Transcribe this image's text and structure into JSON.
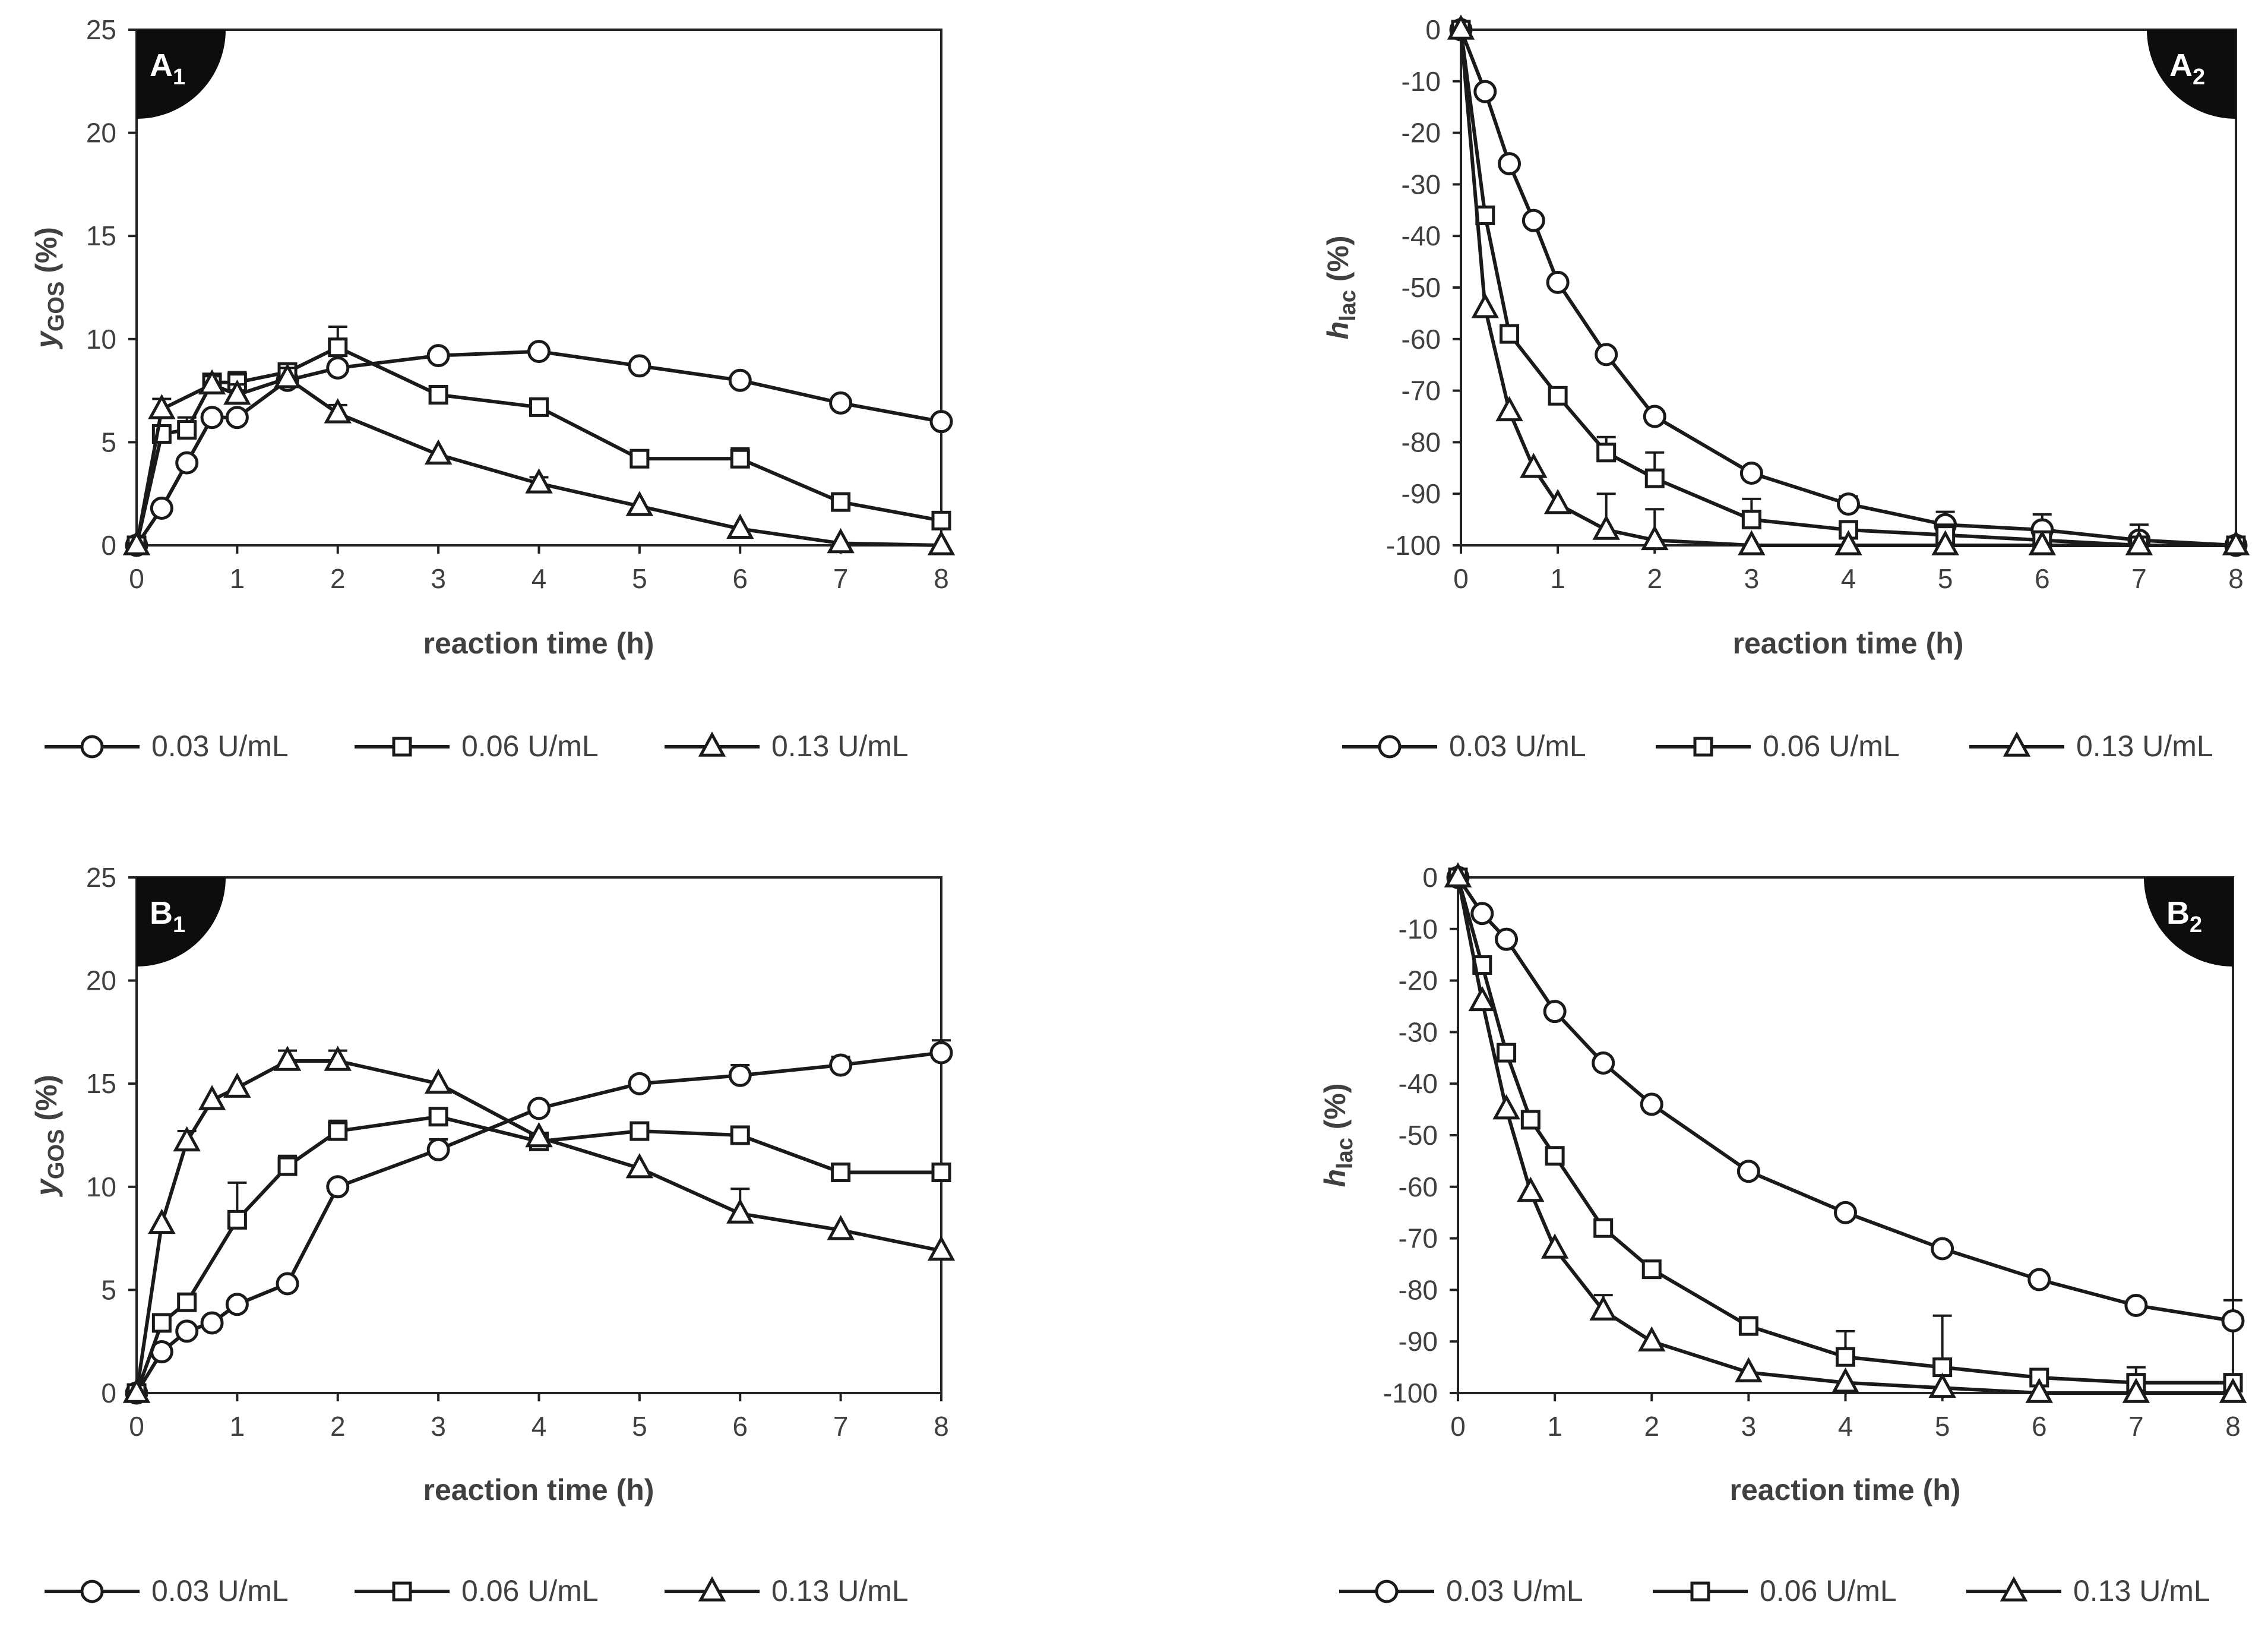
{
  "series_names": [
    "0.03 U/mL",
    "0.06 U/mL",
    "0.13 U/mL"
  ],
  "chart_data": [
    {
      "id": "A1",
      "type": "line",
      "badge": {
        "main": "A",
        "sub": "1"
      },
      "xlabel": "reaction time (h)",
      "ylabel": {
        "main": "y",
        "sub": "GOS",
        "unit": " (%)",
        "style": "italic"
      },
      "xlim": [
        0,
        8
      ],
      "ylim": [
        0,
        25
      ],
      "xticks": [
        0,
        1,
        2,
        3,
        4,
        5,
        6,
        7,
        8
      ],
      "yticks": [
        0,
        5,
        10,
        15,
        20,
        25
      ],
      "legend": "bottom",
      "series": [
        {
          "name": "0.03 U/mL",
          "marker": "circle",
          "x": [
            0,
            0.25,
            0.5,
            0.75,
            1,
            1.5,
            2,
            3,
            4,
            5,
            6,
            7,
            8
          ],
          "y": [
            0,
            1.8,
            4.0,
            6.2,
            6.2,
            8.0,
            8.6,
            9.2,
            9.4,
            8.7,
            8.0,
            6.9,
            6.0
          ],
          "err": [
            0,
            0,
            0,
            0,
            0,
            0,
            0.3,
            0,
            0,
            0,
            0,
            0,
            0
          ]
        },
        {
          "name": "0.06 U/mL",
          "marker": "square",
          "x": [
            0,
            0.25,
            0.5,
            0.75,
            1,
            1.5,
            2,
            3,
            4,
            5,
            6,
            7,
            8
          ],
          "y": [
            0,
            5.4,
            5.6,
            7.9,
            7.9,
            8.4,
            9.6,
            7.3,
            6.7,
            4.2,
            4.2,
            2.1,
            1.2
          ],
          "err": [
            0,
            0.3,
            0.6,
            0,
            0.5,
            0,
            1.0,
            0,
            0.4,
            0,
            0.5,
            0.3,
            0
          ]
        },
        {
          "name": "0.13 U/mL",
          "marker": "triangle",
          "x": [
            0,
            0.25,
            0.75,
            1,
            1.5,
            2,
            3,
            4,
            5,
            6,
            7,
            8
          ],
          "y": [
            0,
            6.6,
            7.8,
            7.3,
            8.1,
            6.4,
            4.4,
            3.0,
            1.9,
            0.8,
            0.1,
            0
          ],
          "err": [
            0,
            0.5,
            0.4,
            0.5,
            0.5,
            0.4,
            0,
            0.3,
            0,
            0,
            0,
            0
          ]
        }
      ]
    },
    {
      "id": "A2",
      "type": "line",
      "badge": {
        "main": "A",
        "sub": "2"
      },
      "xlabel": "reaction time (h)",
      "ylabel": {
        "main": "h",
        "sub": "lac",
        "unit": " (%)",
        "style": "italic"
      },
      "xlim": [
        0,
        8
      ],
      "ylim": [
        -100,
        0
      ],
      "xticks": [
        0,
        1,
        2,
        3,
        4,
        5,
        6,
        7,
        8
      ],
      "yticks": [
        0,
        -10,
        -20,
        -30,
        -40,
        -50,
        -60,
        -70,
        -80,
        -90,
        -100
      ],
      "legend": "bottom",
      "series": [
        {
          "name": "0.03 U/mL",
          "marker": "circle",
          "x": [
            0,
            0.25,
            0.5,
            0.75,
            1,
            1.5,
            2,
            3,
            4,
            5,
            6,
            7,
            8
          ],
          "y": [
            0,
            -12,
            -26,
            -37,
            -49,
            -63,
            -75,
            -86,
            -92,
            -96,
            -97,
            -99,
            -100
          ],
          "err": [
            0,
            0,
            0,
            0,
            0,
            0,
            0,
            0,
            1.5,
            2.5,
            3,
            3,
            0
          ]
        },
        {
          "name": "0.06 U/mL",
          "marker": "square",
          "x": [
            0,
            0.25,
            0.5,
            1,
            1.5,
            2,
            3,
            4,
            5,
            6,
            7,
            8
          ],
          "y": [
            0,
            -36,
            -59,
            -71,
            -82,
            -87,
            -95,
            -97,
            -98,
            -99,
            -100,
            -100
          ],
          "err": [
            0,
            1,
            1,
            0,
            3,
            5,
            4,
            1,
            2,
            0,
            0,
            0
          ]
        },
        {
          "name": "0.13 U/mL",
          "marker": "triangle",
          "x": [
            0,
            0.25,
            0.5,
            0.75,
            1,
            1.5,
            2,
            3,
            4,
            5,
            6,
            7,
            8
          ],
          "y": [
            0,
            -54,
            -74,
            -85,
            -92,
            -97,
            -99,
            -100,
            -100,
            -100,
            -100,
            -100,
            -100
          ],
          "err": [
            0,
            0,
            0,
            0,
            0,
            7,
            6,
            0,
            0,
            0,
            0,
            0,
            0
          ]
        }
      ]
    },
    {
      "id": "B1",
      "type": "line",
      "badge": {
        "main": "B",
        "sub": "1"
      },
      "xlabel": "reaction time (h)",
      "ylabel": {
        "main": "y",
        "sub": "GOS",
        "unit": " (%)",
        "style": "italic"
      },
      "xlim": [
        0,
        8
      ],
      "ylim": [
        0,
        25
      ],
      "xticks": [
        0,
        1,
        2,
        3,
        4,
        5,
        6,
        7,
        8
      ],
      "yticks": [
        0,
        5,
        10,
        15,
        20,
        25
      ],
      "legend": "bottom",
      "series": [
        {
          "name": "0.03 U/mL",
          "marker": "circle",
          "x": [
            0,
            0.25,
            0.5,
            0.75,
            1,
            1.5,
            2,
            3,
            4,
            5,
            6,
            7,
            8
          ],
          "y": [
            0,
            2.0,
            3.0,
            3.4,
            4.3,
            5.3,
            10.0,
            11.8,
            13.8,
            15.0,
            15.4,
            15.9,
            16.5
          ],
          "err": [
            0,
            0,
            0,
            0,
            0,
            0,
            0,
            0.5,
            0,
            0.3,
            0.5,
            0.4,
            0.6
          ]
        },
        {
          "name": "0.06 U/mL",
          "marker": "square",
          "x": [
            0,
            0.25,
            0.5,
            1,
            1.5,
            2,
            3,
            4,
            5,
            6,
            7,
            8
          ],
          "y": [
            0,
            3.4,
            4.4,
            8.4,
            11.0,
            12.7,
            13.4,
            12.2,
            12.7,
            12.5,
            10.7,
            10.7
          ],
          "err": [
            0,
            0,
            0.3,
            1.8,
            0.5,
            0.5,
            0.3,
            0,
            0,
            0,
            0.4,
            0
          ]
        },
        {
          "name": "0.13 U/mL",
          "marker": "triangle",
          "x": [
            0,
            0.25,
            0.5,
            0.75,
            1,
            1.5,
            2,
            3,
            4,
            5,
            6,
            7,
            8
          ],
          "y": [
            0,
            8.2,
            12.2,
            14.2,
            14.8,
            16.1,
            16.1,
            15.0,
            12.4,
            10.9,
            8.7,
            7.9,
            6.9
          ],
          "err": [
            0,
            0,
            0.5,
            0,
            0,
            0.5,
            0.5,
            0,
            0,
            0,
            1.2,
            0,
            0
          ]
        }
      ]
    },
    {
      "id": "B2",
      "type": "line",
      "badge": {
        "main": "B",
        "sub": "2"
      },
      "xlabel": "reaction time (h)",
      "ylabel": {
        "main": "h",
        "sub": "lac",
        "unit": " (%)",
        "style": "italic"
      },
      "xlim": [
        0,
        8
      ],
      "ylim": [
        -100,
        0
      ],
      "xticks": [
        0,
        1,
        2,
        3,
        4,
        5,
        6,
        7,
        8
      ],
      "yticks": [
        0,
        -10,
        -20,
        -30,
        -40,
        -50,
        -60,
        -70,
        -80,
        -90,
        -100
      ],
      "legend": "bottom",
      "series": [
        {
          "name": "0.03 U/mL",
          "marker": "circle",
          "x": [
            0,
            0.25,
            0.5,
            1,
            1.5,
            2,
            3,
            4,
            5,
            6,
            7,
            8
          ],
          "y": [
            0,
            -7,
            -12,
            -26,
            -36,
            -44,
            -57,
            -65,
            -72,
            -78,
            -83,
            -86
          ],
          "err": [
            0,
            0,
            0,
            0,
            0,
            0,
            0,
            0,
            0,
            1,
            0,
            4
          ]
        },
        {
          "name": "0.06 U/mL",
          "marker": "square",
          "x": [
            0,
            0.25,
            0.5,
            0.75,
            1,
            1.5,
            2,
            3,
            4,
            5,
            6,
            7,
            8
          ],
          "y": [
            0,
            -17,
            -34,
            -47,
            -54,
            -68,
            -76,
            -87,
            -93,
            -95,
            -97,
            -98,
            -98
          ],
          "err": [
            0,
            0,
            0,
            0,
            0,
            0,
            0,
            0,
            5,
            10,
            0,
            3,
            0
          ]
        },
        {
          "name": "0.13 U/mL",
          "marker": "triangle",
          "x": [
            0,
            0.25,
            0.5,
            0.75,
            1,
            1.5,
            2,
            3,
            4,
            5,
            6,
            7,
            8
          ],
          "y": [
            0,
            -24,
            -45,
            -61,
            -72,
            -84,
            -90,
            -96,
            -98,
            -99,
            -100,
            -100,
            -100
          ],
          "err": [
            0,
            0,
            0,
            0,
            0,
            3,
            0,
            0,
            0,
            0,
            0,
            0,
            0
          ]
        }
      ]
    }
  ]
}
